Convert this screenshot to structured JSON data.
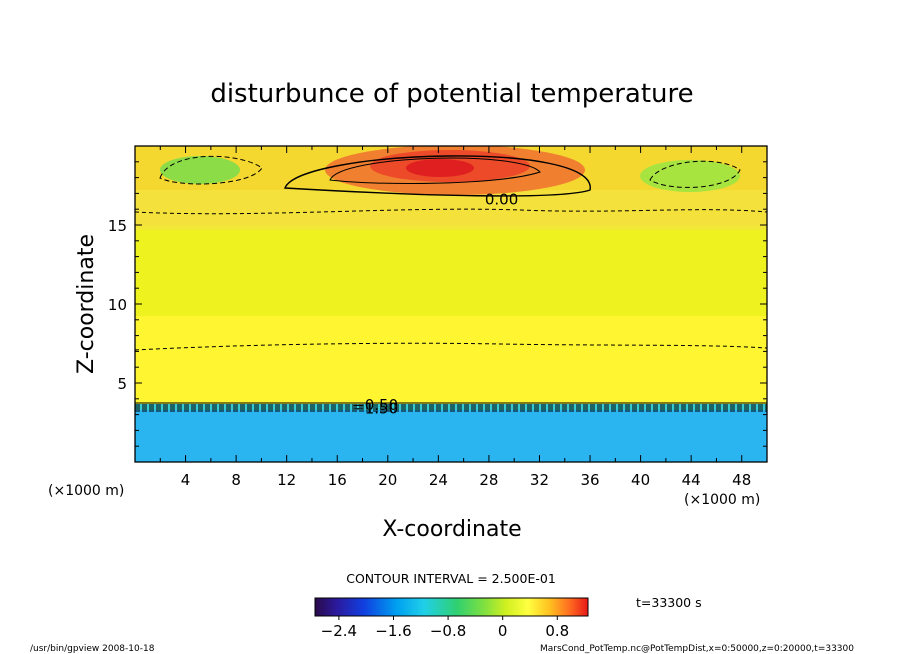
{
  "chart_data": {
    "type": "heatmap",
    "title": "disturbunce of potential temperature",
    "xlabel": "X-coordinate",
    "ylabel": "Z-coordinate",
    "x_unit_left": "(×1000 m)",
    "x_unit_right": "(×1000 m)",
    "xlim": [
      0,
      50
    ],
    "ylim": [
      0,
      20
    ],
    "x_ticks": [
      "4",
      "8",
      "12",
      "16",
      "20",
      "24",
      "28",
      "32",
      "36",
      "40",
      "44",
      "48"
    ],
    "x_tick_values": [
      4,
      8,
      12,
      16,
      20,
      24,
      28,
      32,
      36,
      40,
      44,
      48
    ],
    "y_ticks": [
      "5",
      "10",
      "15"
    ],
    "y_tick_values": [
      5,
      10,
      15
    ],
    "contour_interval_text": "CONTOUR INTERVAL = 2.500E-01",
    "time_text": "t=33300 s",
    "colorbar": {
      "range": [
        -2.75,
        1.25
      ],
      "tick_labels": [
        "−2.4",
        "−1.6",
        "−0.8",
        "0",
        "0.8"
      ],
      "tick_values": [
        -2.4,
        -1.6,
        -0.8,
        0,
        0.8
      ]
    },
    "contour_labels": [
      {
        "text": "0.00",
        "x": 29,
        "z": 16.6
      },
      {
        "text": "−0.50",
        "x": 19,
        "z": 3.6
      },
      {
        "text": "−1.50",
        "x": 19,
        "z": 3.4
      }
    ],
    "field_description_levels": [
      {
        "z_from": 0,
        "z_to": 3.6,
        "value": -2.0
      },
      {
        "z_from": 3.6,
        "z_to": 7.5,
        "value": 0.35
      },
      {
        "z_from": 7.5,
        "z_to": 16.0,
        "value": 0.15
      },
      {
        "z_from": 16.0,
        "z_to": 20,
        "value": 0.4
      }
    ],
    "footer_left": "/usr/bin/gpview   2008-10-18",
    "footer_right": "MarsCond_PotTemp.nc@PotTempDist,x=0:50000,z=0:20000,t=33300"
  }
}
